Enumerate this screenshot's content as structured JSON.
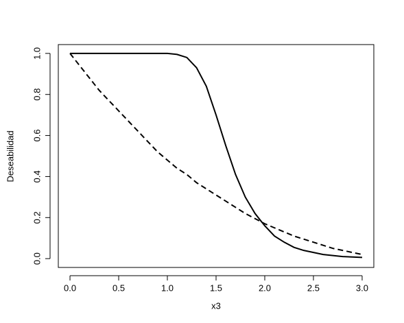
{
  "chart_data": {
    "type": "line",
    "x_label": "x3",
    "y_label": "Deseabilidad",
    "x": [
      0,
      0.1,
      0.2,
      0.3,
      0.4,
      0.5,
      0.6,
      0.7,
      0.8,
      0.9,
      1.0,
      1.1,
      1.2,
      1.3,
      1.4,
      1.5,
      1.6,
      1.7,
      1.8,
      1.9,
      2.0,
      2.1,
      2.2,
      2.3,
      2.4,
      2.5,
      2.6,
      2.7,
      2.8,
      2.9,
      3.0
    ],
    "series": [
      {
        "color": "#000000",
        "dash": "solid",
        "values": [
          1,
          1,
          1,
          1,
          1,
          1,
          1,
          1,
          1,
          1,
          1,
          0.995,
          0.98,
          0.93,
          0.84,
          0.7,
          0.55,
          0.41,
          0.3,
          0.22,
          0.16,
          0.11,
          0.08,
          0.055,
          0.04,
          0.03,
          0.02,
          0.015,
          0.01,
          0.008,
          0.006
        ]
      },
      {
        "color": "#000000",
        "dash": "dashed",
        "values": [
          1,
          0.94,
          0.88,
          0.82,
          0.77,
          0.72,
          0.67,
          0.62,
          0.57,
          0.52,
          0.48,
          0.44,
          0.41,
          0.37,
          0.34,
          0.31,
          0.28,
          0.25,
          0.22,
          0.195,
          0.17,
          0.15,
          0.13,
          0.11,
          0.095,
          0.08,
          0.065,
          0.05,
          0.04,
          0.03,
          0.02
        ]
      }
    ],
    "xlim": [
      -0.12,
      3.12
    ],
    "ylim": [
      -0.043,
      1.043
    ],
    "xticks": [
      {
        "value": 0,
        "label": "0.0"
      },
      0.5,
      {
        "value": 1,
        "label": "1.0"
      },
      1.5,
      {
        "value": 2,
        "label": "2.0"
      },
      2.5,
      {
        "value": 3,
        "label": "3.0"
      }
    ],
    "yticks": [
      {
        "value": 0,
        "label": "0.0"
      },
      0.2,
      0.4,
      0.6,
      0.8,
      {
        "value": 1,
        "label": "1.0"
      }
    ],
    "grid": false
  }
}
